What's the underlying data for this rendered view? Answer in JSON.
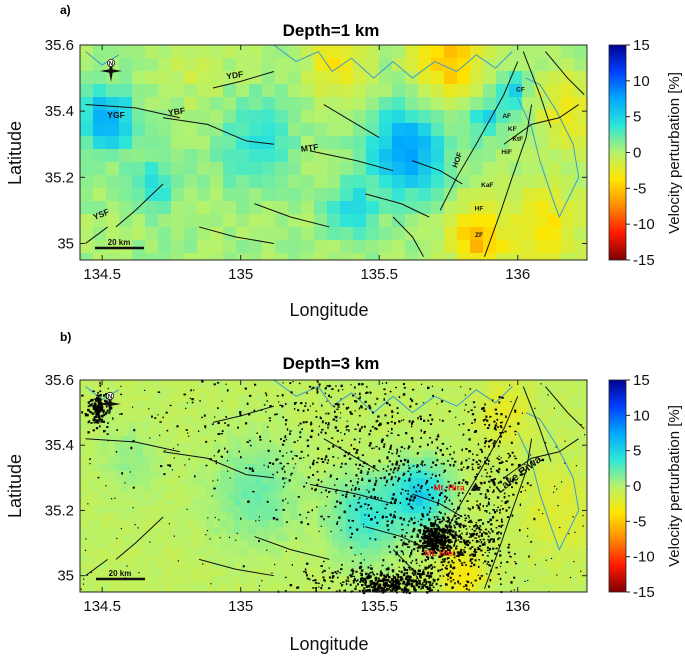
{
  "colors": {
    "fault": "#111111",
    "coast": "#3e9ccc",
    "event": "#000000",
    "annotation": "#e81818"
  },
  "chart_data": [
    {
      "type": "heatmap",
      "panel_letter": "a)",
      "title": "Depth=1 km",
      "xlabel": "Longitude",
      "ylabel": "Latitude",
      "xlim": [
        134.42,
        136.25
      ],
      "ylim": [
        34.95,
        35.6
      ],
      "xticks": [
        "134.5",
        "135",
        "135.5",
        "136"
      ],
      "yticks": [
        "35.6",
        "35.4",
        "35.2",
        "35"
      ],
      "colorbar": {
        "label": "Velocity perturbation [%]",
        "min": -15,
        "max": 15,
        "ticks": [
          "15",
          "10",
          "5",
          "0",
          "-5",
          "-10",
          "-15"
        ],
        "reversed": true
      },
      "scale_bar": "20 km",
      "north_arrow": "N",
      "anomalies": [
        {
          "lon": 134.52,
          "lat": 35.37,
          "value": 7.5,
          "radius": 0.09
        },
        {
          "lon": 134.68,
          "lat": 35.18,
          "value": 4.5,
          "radius": 0.07
        },
        {
          "lon": 135.05,
          "lat": 35.3,
          "value": 3.5,
          "radius": 0.13
        },
        {
          "lon": 135.4,
          "lat": 35.1,
          "value": 4.5,
          "radius": 0.08
        },
        {
          "lon": 135.6,
          "lat": 35.28,
          "value": 7.5,
          "radius": 0.13
        },
        {
          "lon": 135.88,
          "lat": 35.38,
          "value": 4.5,
          "radius": 0.06
        },
        {
          "lon": 135.98,
          "lat": 35.46,
          "value": 5.5,
          "radius": 0.05
        },
        {
          "lon": 135.35,
          "lat": 35.55,
          "value": -4,
          "radius": 0.1
        },
        {
          "lon": 135.75,
          "lat": 35.55,
          "value": -5.5,
          "radius": 0.13
        },
        {
          "lon": 135.85,
          "lat": 35.02,
          "value": -6,
          "radius": 0.1
        },
        {
          "lon": 136.1,
          "lat": 35.05,
          "value": -4,
          "radius": 0.14
        },
        {
          "lon": 136.18,
          "lat": 35.4,
          "value": -3,
          "radius": 0.12
        },
        {
          "lon": 134.85,
          "lat": 35.55,
          "value": -1.5,
          "radius": 0.12
        }
      ],
      "fault_labels": [
        {
          "text": "YDF",
          "lon": 134.98,
          "lat": 35.5,
          "size": 8.5,
          "rot": -8
        },
        {
          "text": "YGF",
          "lon": 134.55,
          "lat": 35.38,
          "size": 8.5,
          "rot": 0
        },
        {
          "text": "YBF",
          "lon": 134.77,
          "lat": 35.39,
          "size": 8.5,
          "rot": -8
        },
        {
          "text": "MTF",
          "lon": 135.25,
          "lat": 35.28,
          "size": 8.5,
          "rot": -8
        },
        {
          "text": "YSF",
          "lon": 134.5,
          "lat": 35.08,
          "size": 8.5,
          "rot": -22
        },
        {
          "text": "HOF",
          "lon": 135.79,
          "lat": 35.25,
          "size": 7.5,
          "rot": -70
        },
        {
          "text": "CF",
          "lon": 136.01,
          "lat": 35.46,
          "size": 6.5,
          "rot": 0
        },
        {
          "text": "AF",
          "lon": 135.96,
          "lat": 35.38,
          "size": 6.5,
          "rot": 0
        },
        {
          "text": "KF",
          "lon": 135.98,
          "lat": 35.34,
          "size": 6.5,
          "rot": 0
        },
        {
          "text": "KtF",
          "lon": 136.0,
          "lat": 35.31,
          "size": 6.5,
          "rot": 0
        },
        {
          "text": "HiF",
          "lon": 135.96,
          "lat": 35.27,
          "size": 6.5,
          "rot": 0
        },
        {
          "text": "KaF",
          "lon": 135.89,
          "lat": 35.17,
          "size": 6.5,
          "rot": 0
        },
        {
          "text": "HF",
          "lon": 135.86,
          "lat": 35.1,
          "size": 6.5,
          "rot": 0
        },
        {
          "text": "ZF",
          "lon": 135.86,
          "lat": 35.02,
          "size": 6.5,
          "rot": 0
        }
      ]
    },
    {
      "type": "heatmap",
      "panel_letter": "b)",
      "title": "Depth=3 km",
      "xlabel": "Longitude",
      "ylabel": "Latitude",
      "xlim": [
        134.42,
        136.25
      ],
      "ylim": [
        34.95,
        35.6
      ],
      "xticks": [
        "134.5",
        "135",
        "135.5",
        "136"
      ],
      "yticks": [
        "35.6",
        "35.4",
        "35.2",
        "35"
      ],
      "colorbar": {
        "label": "Velocity perturbation [%]",
        "min": -15,
        "max": 15,
        "ticks": [
          "15",
          "10",
          "5",
          "0",
          "-5",
          "-10",
          "-15"
        ],
        "reversed": true
      },
      "scale_bar": "20 km",
      "north_arrow": "N",
      "anomalies": [
        {
          "lon": 135.05,
          "lat": 35.25,
          "value": 2.5,
          "radius": 0.16
        },
        {
          "lon": 135.45,
          "lat": 35.18,
          "value": 4,
          "radius": 0.13
        },
        {
          "lon": 135.65,
          "lat": 35.25,
          "value": 5.5,
          "radius": 0.1
        },
        {
          "lon": 134.6,
          "lat": 35.35,
          "value": 1.5,
          "radius": 0.1
        },
        {
          "lon": 135.8,
          "lat": 35.0,
          "value": -3,
          "radius": 0.08
        },
        {
          "lon": 136.15,
          "lat": 35.2,
          "value": -1.5,
          "radius": 0.15
        },
        {
          "lon": 135.95,
          "lat": 35.5,
          "value": -2,
          "radius": 0.1
        }
      ],
      "annotations": [
        {
          "text": "Mt. Hira",
          "lon": 135.83,
          "lat": 35.27
        },
        {
          "text": "Mt. Hiei",
          "lon": 135.78,
          "lat": 35.07
        }
      ],
      "lake_label": "Lake Biwa"
    }
  ]
}
